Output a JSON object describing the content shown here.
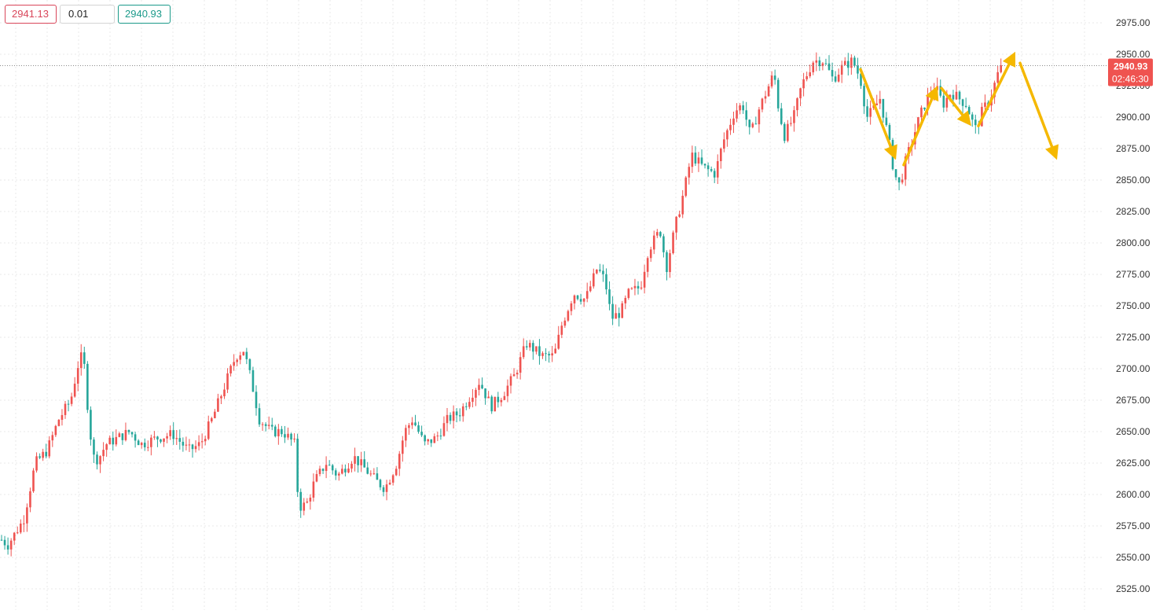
{
  "order_bar": {
    "sell_price": "2941.13",
    "quantity": "0.01",
    "buy_price": "2940.93"
  },
  "price_tag": {
    "price": "2940.93",
    "countdown": "02:46:30"
  },
  "colors": {
    "up": "#ef5350",
    "down": "#26a69a",
    "arrow": "#f5b800",
    "price_tag_bg": "#ef5350",
    "grid": "#e8e8e8",
    "sell_border": "#d9465a",
    "buy_border": "#1b9a8a"
  },
  "icons": [
    "arrow-annotation"
  ],
  "chart_data": {
    "type": "candlestick",
    "y_axis": {
      "position": "right",
      "ylim": [
        2519,
        2988
      ],
      "ticks": [
        2975,
        2950,
        2925,
        2900,
        2875,
        2850,
        2825,
        2800,
        2775,
        2750,
        2725,
        2700,
        2675,
        2650,
        2625,
        2600,
        2575,
        2550,
        2525
      ],
      "tick_labels": [
        "2975.00",
        "2950.00",
        "2925.00",
        "2900.00",
        "2875.00",
        "2850.00",
        "2825.00",
        "2800.00",
        "2775.00",
        "2750.00",
        "2725.00",
        "2700.00",
        "2675.00",
        "2650.00",
        "2625.00",
        "2600.00",
        "2575.00",
        "2550.00",
        "2525.00"
      ]
    },
    "grid": true,
    "current_price_line": 2940.93,
    "price_path_anchors": [
      [
        0,
        2565
      ],
      [
        10,
        2560
      ],
      [
        30,
        2580
      ],
      [
        45,
        2625
      ],
      [
        60,
        2635
      ],
      [
        75,
        2660
      ],
      [
        90,
        2675
      ],
      [
        100,
        2705
      ],
      [
        106,
        2712
      ],
      [
        110,
        2680
      ],
      [
        118,
        2630
      ],
      [
        125,
        2628
      ],
      [
        135,
        2640
      ],
      [
        150,
        2645
      ],
      [
        165,
        2650
      ],
      [
        180,
        2640
      ],
      [
        200,
        2645
      ],
      [
        220,
        2648
      ],
      [
        240,
        2635
      ],
      [
        255,
        2640
      ],
      [
        270,
        2660
      ],
      [
        285,
        2685
      ],
      [
        300,
        2710
      ],
      [
        310,
        2715
      ],
      [
        320,
        2690
      ],
      [
        330,
        2660
      ],
      [
        345,
        2650
      ],
      [
        360,
        2650
      ],
      [
        375,
        2640
      ],
      [
        380,
        2590
      ],
      [
        390,
        2592
      ],
      [
        400,
        2610
      ],
      [
        415,
        2625
      ],
      [
        430,
        2615
      ],
      [
        450,
        2630
      ],
      [
        465,
        2620
      ],
      [
        480,
        2610
      ],
      [
        490,
        2605
      ],
      [
        505,
        2625
      ],
      [
        515,
        2650
      ],
      [
        525,
        2660
      ],
      [
        540,
        2640
      ],
      [
        555,
        2645
      ],
      [
        570,
        2660
      ],
      [
        585,
        2665
      ],
      [
        600,
        2680
      ],
      [
        610,
        2690
      ],
      [
        625,
        2670
      ],
      [
        640,
        2680
      ],
      [
        655,
        2695
      ],
      [
        670,
        2720
      ],
      [
        690,
        2710
      ],
      [
        705,
        2710
      ],
      [
        715,
        2735
      ],
      [
        730,
        2760
      ],
      [
        745,
        2755
      ],
      [
        760,
        2780
      ],
      [
        770,
        2770
      ],
      [
        778,
        2740
      ],
      [
        790,
        2745
      ],
      [
        800,
        2760
      ],
      [
        815,
        2765
      ],
      [
        825,
        2795
      ],
      [
        840,
        2810
      ],
      [
        848,
        2780
      ],
      [
        860,
        2815
      ],
      [
        870,
        2840
      ],
      [
        880,
        2870
      ],
      [
        895,
        2860
      ],
      [
        910,
        2855
      ],
      [
        920,
        2880
      ],
      [
        935,
        2905
      ],
      [
        945,
        2910
      ],
      [
        955,
        2885
      ],
      [
        965,
        2905
      ],
      [
        975,
        2920
      ],
      [
        985,
        2935
      ],
      [
        990,
        2910
      ],
      [
        998,
        2885
      ],
      [
        1010,
        2900
      ],
      [
        1020,
        2925
      ],
      [
        1035,
        2945
      ],
      [
        1048,
        2945
      ],
      [
        1060,
        2930
      ],
      [
        1072,
        2940
      ],
      [
        1085,
        2945
      ],
      [
        1095,
        2930
      ],
      [
        1103,
        2900
      ],
      [
        1110,
        2905
      ],
      [
        1120,
        2915
      ],
      [
        1130,
        2885
      ],
      [
        1138,
        2855
      ],
      [
        1145,
        2845
      ],
      [
        1150,
        2860
      ],
      [
        1160,
        2880
      ],
      [
        1170,
        2900
      ],
      [
        1180,
        2915
      ],
      [
        1190,
        2925
      ],
      [
        1200,
        2910
      ],
      [
        1210,
        2920
      ],
      [
        1220,
        2915
      ],
      [
        1230,
        2910
      ],
      [
        1238,
        2895
      ],
      [
        1242,
        2890
      ],
      [
        1250,
        2905
      ],
      [
        1260,
        2915
      ],
      [
        1270,
        2935
      ],
      [
        1276,
        2941
      ]
    ],
    "annotations": [
      {
        "type": "arrow",
        "from": [
          1095,
          2938
        ],
        "to": [
          1140,
          2866
        ],
        "color": "#f5b800"
      },
      {
        "type": "arrow",
        "from": [
          1150,
          2862
        ],
        "to": [
          1193,
          2925
        ],
        "color": "#f5b800"
      },
      {
        "type": "arrow",
        "from": [
          1198,
          2923
        ],
        "to": [
          1236,
          2893
        ],
        "color": "#f5b800"
      },
      {
        "type": "arrow",
        "from": [
          1245,
          2893
        ],
        "to": [
          1292,
          2952
        ],
        "color": "#f5b800"
      },
      {
        "type": "arrow",
        "from": [
          1298,
          2943
        ],
        "to": [
          1345,
          2866
        ],
        "color": "#f5b800"
      }
    ]
  }
}
